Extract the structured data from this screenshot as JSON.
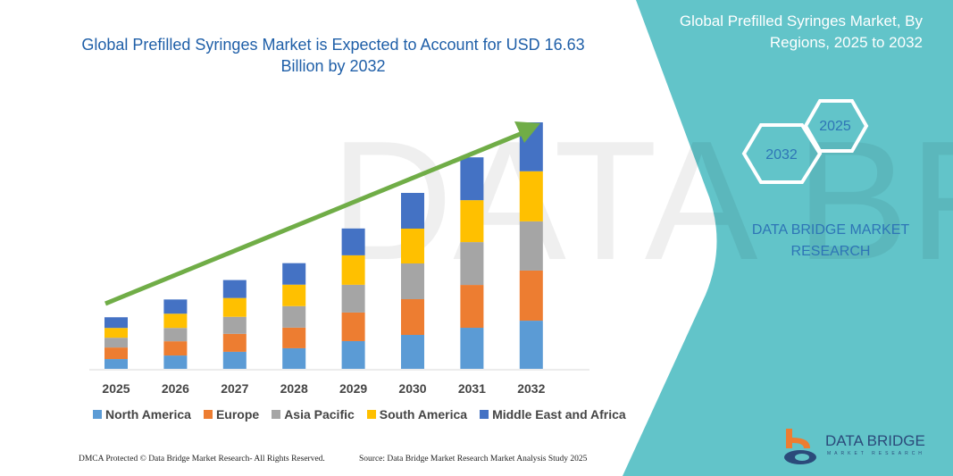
{
  "header": {
    "title": "Global Prefilled Syringes Market is Expected to Account for USD 16.63 Billion by 2032"
  },
  "side_panel": {
    "title": "Global Prefilled Syringes Market, By Regions, 2025 to 2032",
    "hex_start": "2025",
    "hex_end": "2032",
    "brand": "DATA BRIDGE MARKET RESEARCH",
    "logo_text": "DATA BRIDGE",
    "logo_sub": "MARKET RESEARCH",
    "color": "#62C4C9"
  },
  "footer": {
    "left": "DMCA Protected © Data Bridge Market Research- All Rights Reserved.",
    "right": "Source: Data Bridge Market Research Market Analysis Study 2025"
  },
  "chart_data": {
    "type": "bar",
    "stacked": true,
    "unit": "USD Billion (estimated; no axis shown)",
    "categories": [
      "2025",
      "2026",
      "2027",
      "2028",
      "2029",
      "2030",
      "2031",
      "2032"
    ],
    "series": [
      {
        "name": "North America",
        "color": "#5B9BD5",
        "values": [
          0.66,
          0.9,
          1.15,
          1.39,
          1.87,
          2.29,
          2.77,
          3.25
        ]
      },
      {
        "name": "Europe",
        "color": "#ED7D31",
        "values": [
          0.78,
          0.96,
          1.21,
          1.39,
          1.93,
          2.41,
          2.89,
          3.38
        ]
      },
      {
        "name": "Asia Pacific",
        "color": "#A5A5A5",
        "values": [
          0.66,
          0.9,
          1.15,
          1.45,
          1.87,
          2.41,
          2.89,
          3.32
        ]
      },
      {
        "name": "South America",
        "color": "#FFC000",
        "values": [
          0.66,
          0.96,
          1.27,
          1.45,
          1.99,
          2.35,
          2.83,
          3.38
        ]
      },
      {
        "name": "Middle East and Africa",
        "color": "#4472C4",
        "values": [
          0.72,
          0.96,
          1.21,
          1.45,
          1.81,
          2.41,
          2.89,
          3.3
        ]
      }
    ],
    "ylim": [
      0,
      16.63
    ],
    "grid": false,
    "legend": "bottom",
    "trend_arrow_color": "#70AD47"
  }
}
